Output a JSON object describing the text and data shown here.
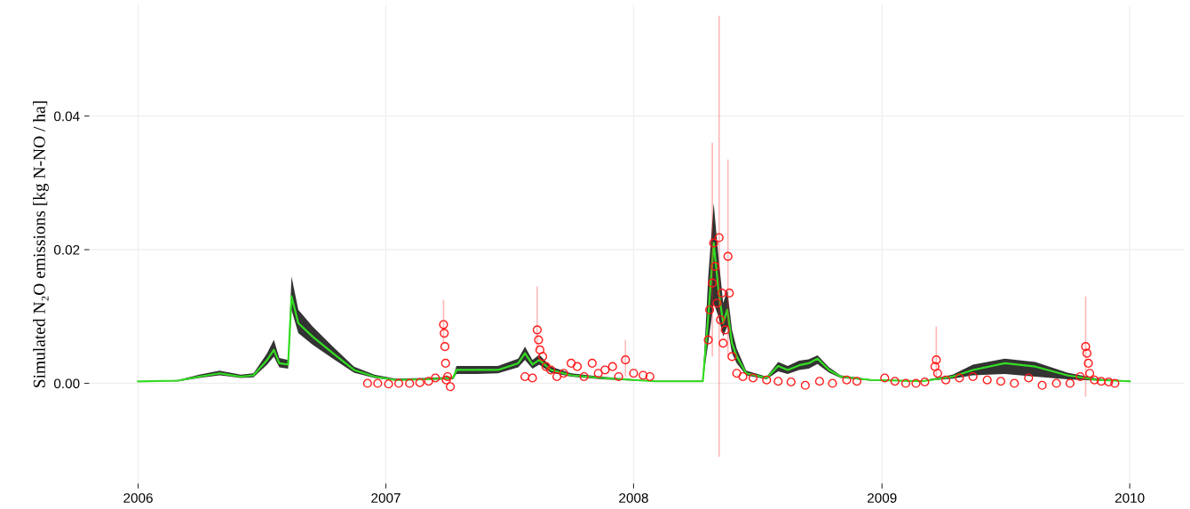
{
  "chart_data": {
    "type": "line",
    "ylabel": "Simulated N₂O emissions [kg N-NO / ha]",
    "xlim": [
      "2005-10-21",
      "2010-03-22"
    ],
    "xticks": [
      {
        "value": "2006-01-01",
        "label": "2006"
      },
      {
        "value": "2007-01-01",
        "label": "2007"
      },
      {
        "value": "2008-01-01",
        "label": "2008"
      },
      {
        "value": "2009-01-01",
        "label": "2009"
      },
      {
        "value": "2010-01-01",
        "label": "2010"
      }
    ],
    "ylim": [
      -0.015,
      0.0566
    ],
    "yticks": [
      {
        "value": 0,
        "label": "0.00"
      },
      {
        "value": 0.02,
        "label": "0.02"
      },
      {
        "value": 0.04,
        "label": "0.04"
      }
    ],
    "grid": true,
    "series": [
      {
        "type": "line",
        "color": "#33dd22",
        "marker": "none",
        "x": [
          "2006-01-01",
          "2006-03-01",
          "2006-04-01",
          "2006-05-01",
          "2006-06-01",
          "2006-06-20",
          "2006-07-10",
          "2006-07-20",
          "2006-07-28",
          "2006-08-10",
          "2006-08-15",
          "2006-08-25",
          "2006-09-15",
          "2006-10-15",
          "2006-11-15",
          "2006-12-15",
          "2007-01-15",
          "2007-03-01",
          "2007-04-10",
          "2007-04-15",
          "2007-05-15",
          "2007-06-15",
          "2007-07-15",
          "2007-07-25",
          "2007-08-05",
          "2007-08-15",
          "2007-09-01",
          "2007-10-01",
          "2007-11-15",
          "2008-01-01",
          "2008-02-01",
          "2008-04-12",
          "2008-04-20",
          "2008-04-28",
          "2008-05-05",
          "2008-05-12",
          "2008-05-18",
          "2008-05-25",
          "2008-06-01",
          "2008-06-15",
          "2008-07-15",
          "2008-08-01",
          "2008-08-15",
          "2008-09-01",
          "2008-09-15",
          "2008-09-28",
          "2008-10-15",
          "2008-11-01",
          "2008-12-15",
          "2009-03-01",
          "2009-04-15",
          "2009-05-15",
          "2009-07-01",
          "2009-08-15",
          "2009-10-01",
          "2009-11-15",
          "2010-01-01"
        ],
        "values": [
          0.0003,
          0.0004,
          0.001,
          0.0015,
          0.001,
          0.0012,
          0.0035,
          0.005,
          0.003,
          0.0028,
          0.013,
          0.009,
          0.007,
          0.0045,
          0.002,
          0.001,
          0.0005,
          0.0006,
          0.0008,
          0.002,
          0.002,
          0.002,
          0.003,
          0.0045,
          0.0028,
          0.0035,
          0.002,
          0.0012,
          0.0008,
          0.0005,
          0.0003,
          0.0003,
          0.01,
          0.021,
          0.014,
          0.009,
          0.011,
          0.006,
          0.004,
          0.0015,
          0.0008,
          0.0026,
          0.002,
          0.0027,
          0.003,
          0.0037,
          0.002,
          0.001,
          0.0005,
          0.0003,
          0.001,
          0.002,
          0.003,
          0.0025,
          0.0012,
          0.0005,
          0.0003
        ],
        "lower": [
          0.0003,
          0.0003,
          0.0008,
          0.0012,
          0.0008,
          0.0009,
          0.0028,
          0.004,
          0.0024,
          0.0022,
          0.011,
          0.0075,
          0.0058,
          0.0037,
          0.0016,
          0.0008,
          0.0004,
          0.0005,
          0.0006,
          0.0014,
          0.0014,
          0.0015,
          0.0024,
          0.0035,
          0.0022,
          0.0028,
          0.0016,
          0.001,
          0.0006,
          0.0004,
          0.0003,
          0.0003,
          0.006,
          0.012,
          0.01,
          0.007,
          0.0085,
          0.0045,
          0.003,
          0.0012,
          0.0006,
          0.0018,
          0.0014,
          0.002,
          0.0022,
          0.0029,
          0.0016,
          0.0008,
          0.0004,
          0.0003,
          0.0007,
          0.0012,
          0.0014,
          0.001,
          0.0006,
          0.0004,
          0.0003
        ],
        "upper": [
          0.0003,
          0.0005,
          0.0013,
          0.0019,
          0.0013,
          0.0015,
          0.0045,
          0.0065,
          0.0038,
          0.0035,
          0.016,
          0.011,
          0.0085,
          0.0055,
          0.0025,
          0.0013,
          0.0007,
          0.0008,
          0.001,
          0.0026,
          0.0026,
          0.0026,
          0.0037,
          0.0055,
          0.0035,
          0.0043,
          0.0025,
          0.0015,
          0.001,
          0.0006,
          0.0004,
          0.0004,
          0.016,
          0.027,
          0.019,
          0.012,
          0.014,
          0.008,
          0.0052,
          0.0019,
          0.001,
          0.0032,
          0.0026,
          0.0034,
          0.0036,
          0.0042,
          0.0024,
          0.0012,
          0.0006,
          0.0004,
          0.0013,
          0.0028,
          0.0037,
          0.0032,
          0.0016,
          0.0007,
          0.0004
        ]
      },
      {
        "type": "scatter",
        "color": "#ff1a1a",
        "marker": "circle",
        "x": [
          "2006-12-05",
          "2006-12-20",
          "2007-01-05",
          "2007-01-20",
          "2007-02-05",
          "2007-02-20",
          "2007-03-05",
          "2007-03-15",
          "2007-03-27",
          "2007-03-28",
          "2007-03-29",
          "2007-03-30",
          "2007-03-31",
          "2007-04-02",
          "2007-04-06",
          "2007-07-25",
          "2007-08-05",
          "2007-08-12",
          "2007-08-14",
          "2007-08-16",
          "2007-08-20",
          "2007-08-25",
          "2007-09-01",
          "2007-09-10",
          "2007-09-20",
          "2007-10-01",
          "2007-10-10",
          "2007-10-20",
          "2007-11-01",
          "2007-11-10",
          "2007-11-20",
          "2007-12-01",
          "2007-12-10",
          "2007-12-20",
          "2008-01-01",
          "2008-01-15",
          "2008-01-25",
          "2008-04-20",
          "2008-04-22",
          "2008-04-26",
          "2008-04-28",
          "2008-04-30",
          "2008-05-03",
          "2008-05-06",
          "2008-05-08",
          "2008-05-10",
          "2008-05-12",
          "2008-05-15",
          "2008-05-19",
          "2008-05-21",
          "2008-05-25",
          "2008-06-01",
          "2008-06-10",
          "2008-06-25",
          "2008-07-15",
          "2008-08-01",
          "2008-08-20",
          "2008-09-10",
          "2008-10-01",
          "2008-10-20",
          "2008-11-10",
          "2008-11-25",
          "2009-01-05",
          "2009-01-20",
          "2009-02-05",
          "2009-02-20",
          "2009-03-05",
          "2009-03-20",
          "2009-03-22",
          "2009-03-24",
          "2009-04-05",
          "2009-04-25",
          "2009-05-15",
          "2009-06-05",
          "2009-06-25",
          "2009-07-15",
          "2009-08-05",
          "2009-08-25",
          "2009-09-15",
          "2009-10-05",
          "2009-10-20",
          "2009-10-28",
          "2009-10-30",
          "2009-11-01",
          "2009-11-03",
          "2009-11-10",
          "2009-11-20",
          "2009-12-01",
          "2009-12-10"
        ],
        "values": [
          0.0,
          0.0,
          -0.0001,
          0.0,
          0.0,
          0.0001,
          0.0003,
          0.0008,
          0.0088,
          0.0075,
          0.0055,
          0.003,
          0.0005,
          0.001,
          -0.0005,
          0.001,
          0.0008,
          0.008,
          0.0065,
          0.005,
          0.004,
          0.0025,
          0.002,
          0.001,
          0.0015,
          0.003,
          0.0025,
          0.001,
          0.003,
          0.0015,
          0.002,
          0.0025,
          0.001,
          0.0035,
          0.0015,
          0.0012,
          0.001,
          0.0065,
          0.011,
          0.015,
          0.021,
          0.0175,
          0.012,
          0.0218,
          0.0095,
          0.0135,
          0.006,
          0.008,
          0.019,
          0.0135,
          0.004,
          0.0015,
          0.001,
          0.0008,
          0.0005,
          0.0003,
          0.0002,
          -0.0003,
          0.0003,
          0.0,
          0.0005,
          0.0003,
          0.0008,
          0.0003,
          0.0,
          0.0,
          0.0002,
          0.0025,
          0.0035,
          0.0015,
          0.0005,
          0.0008,
          0.001,
          0.0005,
          0.0003,
          0.0,
          0.0008,
          -0.0003,
          0.0,
          0.0,
          0.001,
          0.0055,
          0.0045,
          0.003,
          0.0015,
          0.0005,
          0.0003,
          0.0002,
          0.0
        ],
        "errors": [
          null,
          null,
          null,
          null,
          null,
          null,
          null,
          null,
          [
            0.006,
            0.0125
          ],
          null,
          null,
          null,
          null,
          null,
          null,
          null,
          null,
          [
            0.005,
            0.0145
          ],
          null,
          null,
          null,
          null,
          null,
          null,
          null,
          null,
          null,
          null,
          null,
          null,
          null,
          null,
          null,
          [
            0.001,
            0.0065
          ],
          null,
          null,
          null,
          null,
          null,
          [
            0.004,
            0.036
          ],
          null,
          null,
          null,
          [
            -0.011,
            0.055
          ],
          null,
          null,
          null,
          null,
          [
            0.004,
            0.0335
          ],
          null,
          null,
          null,
          null,
          null,
          null,
          null,
          null,
          null,
          null,
          null,
          null,
          null,
          null,
          null,
          null,
          null,
          null,
          null,
          [
            0.001,
            0.0085
          ],
          null,
          null,
          null,
          null,
          null,
          null,
          null,
          null,
          null,
          null,
          null,
          null,
          [
            -0.002,
            0.013
          ],
          null,
          null,
          null,
          null,
          null,
          null,
          null
        ]
      }
    ]
  }
}
